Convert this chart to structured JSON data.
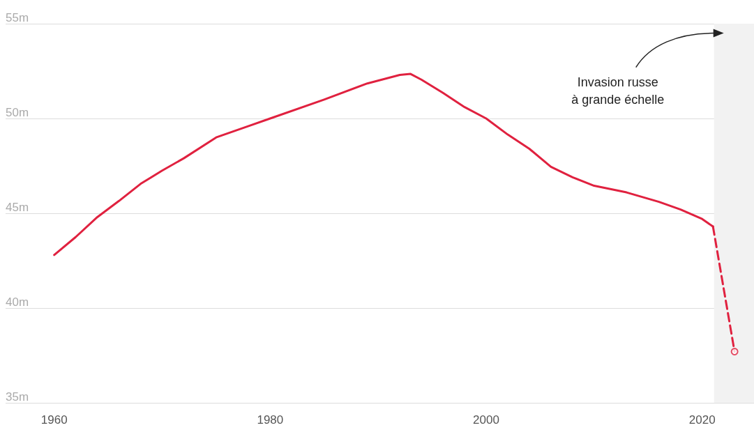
{
  "chart_data": {
    "type": "line",
    "annotations": [
      {
        "text": "Invasion russe\nà grande échelle",
        "x": 2021.1,
        "y": 54.5
      }
    ],
    "xlim": [
      1955.5,
      2024.8
    ],
    "xticks": [
      1960,
      1980,
      2000,
      2020
    ],
    "ylim": [
      35,
      55
    ],
    "yticks": [
      {
        "value": 35,
        "label": "35m"
      },
      {
        "value": 40,
        "label": "40m"
      },
      {
        "value": 45,
        "label": "45m"
      },
      {
        "value": 50,
        "label": "50m"
      },
      {
        "value": 55,
        "label": "55m"
      }
    ],
    "grid": "y",
    "legend": false,
    "marker": "none",
    "line_style": "solid",
    "bands": [
      {
        "axis": "x",
        "from": 2021.1,
        "to": 2024.8,
        "color": "#f2f2f2"
      }
    ],
    "series": [
      {
        "color": "#e0213f",
        "x": [
          1960,
          1962,
          1964,
          1966,
          1968,
          1970,
          1972,
          1975,
          1978,
          1980,
          1985,
          1989,
          1992,
          1993,
          1994,
          1996,
          1998,
          2000,
          2002,
          2004,
          2006,
          2008,
          2010,
          2013,
          2016,
          2018,
          2020,
          2021
        ],
        "values": [
          42.8,
          43.75,
          44.8,
          45.65,
          46.55,
          47.25,
          47.9,
          49.0,
          49.6,
          50.0,
          51.0,
          51.85,
          52.3,
          52.35,
          52.05,
          51.35,
          50.6,
          50.0,
          49.15,
          48.4,
          47.45,
          46.9,
          46.45,
          46.1,
          45.6,
          45.2,
          44.7,
          44.3
        ]
      },
      {
        "color": "#e0213f",
        "line_style": "dashed",
        "x": [
          2021,
          2023
        ],
        "values": [
          44.3,
          37.7
        ]
      },
      {
        "type": "scatter",
        "color": "#e0213f",
        "marker": "circle",
        "x": [
          2023
        ],
        "values": [
          37.7
        ]
      }
    ]
  }
}
